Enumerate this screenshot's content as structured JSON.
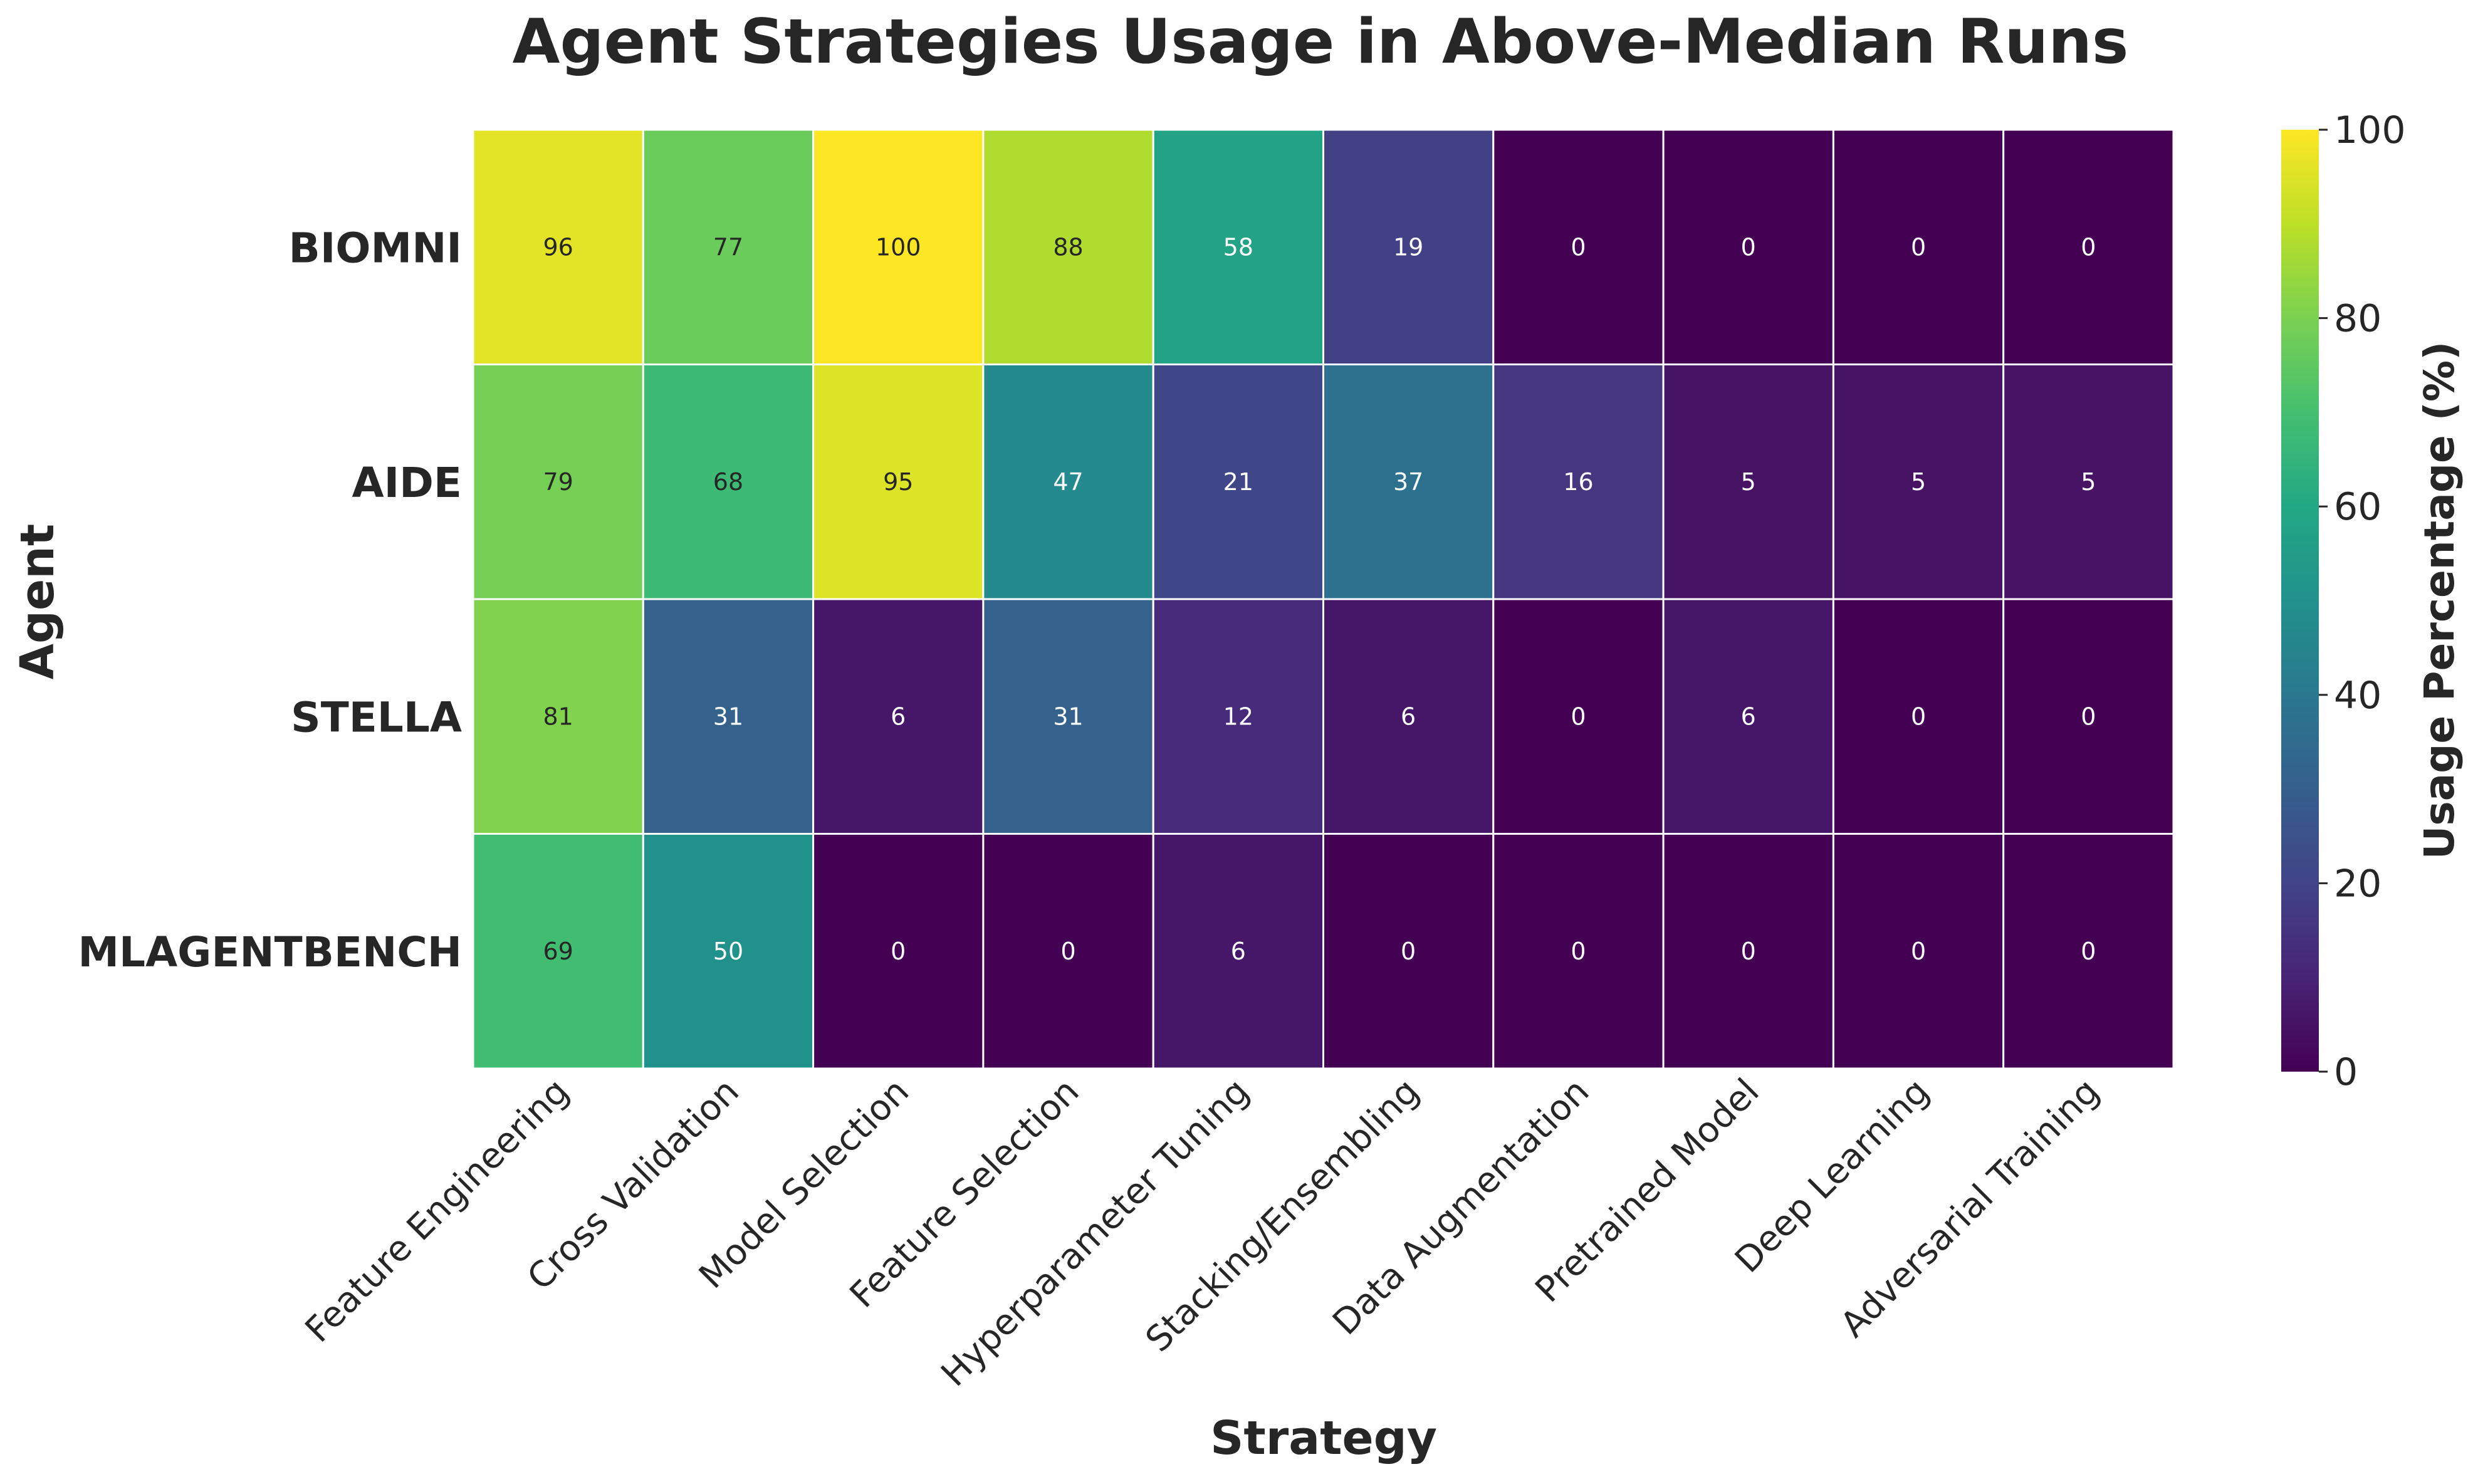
{
  "chart_data": {
    "type": "heatmap",
    "title": "Agent Strategies Usage in Above-Median Runs",
    "xlabel": "Strategy",
    "ylabel": "Agent",
    "rows": [
      "BIOMNI",
      "AIDE",
      "STELLA",
      "MLAGENTBENCH"
    ],
    "columns": [
      "Feature Engineering",
      "Cross Validation",
      "Model Selection",
      "Feature Selection",
      "Hyperparameter Tuning",
      "Stacking/Ensembling",
      "Data Augmentation",
      "Pretrained Model",
      "Deep Learning",
      "Adversarial Training"
    ],
    "values": [
      [
        96,
        77,
        100,
        88,
        58,
        19,
        0,
        0,
        0,
        0
      ],
      [
        79,
        68,
        95,
        47,
        21,
        37,
        16,
        5,
        5,
        5
      ],
      [
        81,
        31,
        6,
        31,
        12,
        6,
        0,
        6,
        0,
        0
      ],
      [
        69,
        50,
        0,
        0,
        6,
        0,
        0,
        0,
        0,
        0
      ]
    ],
    "colormap": "viridis",
    "vmin": 0,
    "vmax": 100,
    "colorbar": {
      "label": "Usage Percentage (%)",
      "ticks": [
        0,
        20,
        40,
        60,
        80,
        100
      ]
    },
    "annotations": true,
    "grid": false
  }
}
